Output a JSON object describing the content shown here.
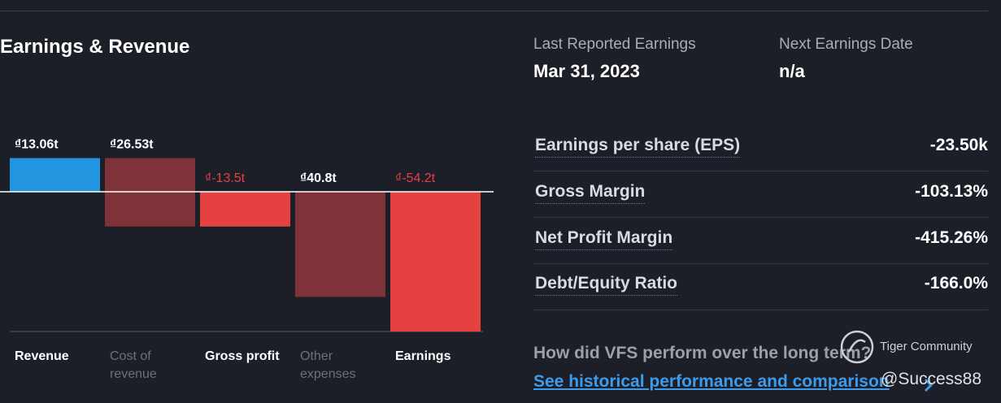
{
  "header": {
    "title": "Earnings & Revenue"
  },
  "chart_data": {
    "type": "waterfall",
    "categories": [
      "Revenue",
      "Cost of revenue",
      "Gross profit",
      "Other expenses",
      "Earnings"
    ],
    "values": [
      13.06,
      26.53,
      -13.5,
      40.8,
      -54.2
    ],
    "value_labels": [
      "₫13.06t",
      "₫26.53t",
      "₫-13.5t",
      "₫40.8t",
      "₫-54.2t"
    ],
    "measure": [
      "total",
      "decrease",
      "total",
      "decrease",
      "total"
    ],
    "colors": [
      "#2394df",
      "#7f3238",
      "#e64141",
      "#7f3238",
      "#e64141"
    ]
  },
  "earnings_info": [
    {
      "label": "Last Reported Earnings",
      "value": "Mar 31, 2023"
    },
    {
      "label": "Next Earnings Date",
      "value": "n/a"
    }
  ],
  "metrics": [
    {
      "label": "Earnings per share (EPS)",
      "value": "-23.50k"
    },
    {
      "label": "Gross Margin",
      "value": "-103.13%"
    },
    {
      "label": "Net Profit Margin",
      "value": "-415.26%"
    },
    {
      "label": "Debt/Equity Ratio",
      "value": "-166.0%"
    }
  ],
  "footer": {
    "question": "How did VFS perform over the long term?",
    "link": "See historical performance and comparison"
  },
  "watermark": {
    "brand": "Tiger Community",
    "user": "@Success88"
  }
}
